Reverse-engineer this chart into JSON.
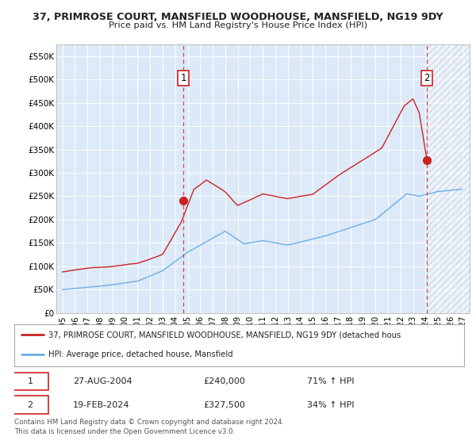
{
  "title": "37, PRIMROSE COURT, MANSFIELD WOODHOUSE, MANSFIELD, NG19 9DY",
  "subtitle": "Price paid vs. HM Land Registry's House Price Index (HPI)",
  "legend_line1": "37, PRIMROSE COURT, MANSFIELD WOODHOUSE, MANSFIELD, NG19 9DY (detached hous",
  "legend_line2": "HPI: Average price, detached house, Mansfield",
  "annotation1_date": "27-AUG-2004",
  "annotation1_price": "£240,000",
  "annotation1_hpi": "71% ↑ HPI",
  "annotation2_date": "19-FEB-2024",
  "annotation2_price": "£327,500",
  "annotation2_hpi": "34% ↑ HPI",
  "footnote": "Contains HM Land Registry data © Crown copyright and database right 2024.\nThis data is licensed under the Open Government Licence v3.0.",
  "red_color": "#cc2222",
  "blue_color": "#6aaee8",
  "ylim": [
    0,
    575000
  ],
  "yticks": [
    0,
    50000,
    100000,
    150000,
    200000,
    250000,
    300000,
    350000,
    400000,
    450000,
    500000,
    550000
  ],
  "ytick_labels": [
    "£0",
    "£50K",
    "£100K",
    "£150K",
    "£200K",
    "£250K",
    "£300K",
    "£350K",
    "£400K",
    "£450K",
    "£500K",
    "£550K"
  ],
  "xlim_start": 1994.5,
  "xlim_end": 2027.5,
  "xticks": [
    1995,
    1996,
    1997,
    1998,
    1999,
    2000,
    2001,
    2002,
    2003,
    2004,
    2005,
    2006,
    2007,
    2008,
    2009,
    2010,
    2011,
    2012,
    2013,
    2014,
    2015,
    2016,
    2017,
    2018,
    2019,
    2020,
    2021,
    2022,
    2023,
    2024,
    2025,
    2026,
    2027
  ],
  "sale1_x": 2004.65,
  "sale1_y": 240000,
  "sale2_x": 2024.12,
  "sale2_y": 327500,
  "bg_color": "#dce9f8"
}
